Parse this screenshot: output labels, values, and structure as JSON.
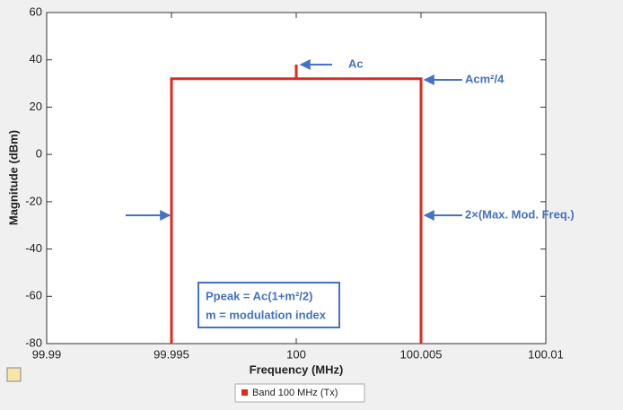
{
  "chart_data": {
    "type": "line",
    "xlabel": "Frequency (MHz)",
    "ylabel": "Magnitude (dBm)",
    "x": [
      99.995,
      99.995,
      100,
      100,
      100,
      100.005,
      100.005
    ],
    "series": [
      {
        "name": "Band 100 MHz (Tx)",
        "color": "#e0281e",
        "values": [
          -80,
          32,
          32,
          38,
          32,
          32,
          -80
        ]
      }
    ],
    "xlim": [
      99.99,
      100.01
    ],
    "xticks": [
      99.99,
      99.995,
      100,
      100.005,
      100.01
    ],
    "ylim": [
      -80,
      60
    ],
    "yticks": [
      -80,
      -60,
      -40,
      -20,
      0,
      20,
      40,
      60
    ],
    "grid": false,
    "legend": "bottom",
    "annotations": [
      "Ac",
      "Acm²/4",
      "2×(Max. Mod. Freq.)",
      "Ppeak = Ac(1+m²/2)",
      "m = modulation index"
    ]
  }
}
